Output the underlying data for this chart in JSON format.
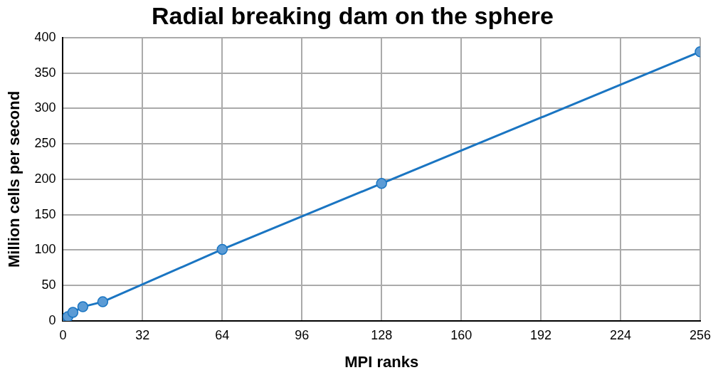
{
  "chart_data": {
    "type": "line",
    "title": "Radial breaking dam on the sphere",
    "xlabel": "MPI ranks",
    "ylabel": "Million cells per second",
    "x": [
      1,
      2,
      4,
      8,
      16,
      64,
      128,
      256
    ],
    "series": [
      {
        "color": "#1a75c2",
        "values": [
          3,
          6,
          12,
          20,
          27,
          101,
          194,
          380
        ]
      }
    ],
    "xlim": [
      0,
      256
    ],
    "xticks": [
      0,
      32,
      64,
      96,
      128,
      160,
      192,
      224,
      256
    ],
    "ylim": [
      0,
      400
    ],
    "yticks": [
      0,
      50,
      100,
      150,
      200,
      250,
      300,
      350,
      400
    ],
    "grid": true,
    "legend": false,
    "marker": "circle",
    "line_style": "solid"
  }
}
